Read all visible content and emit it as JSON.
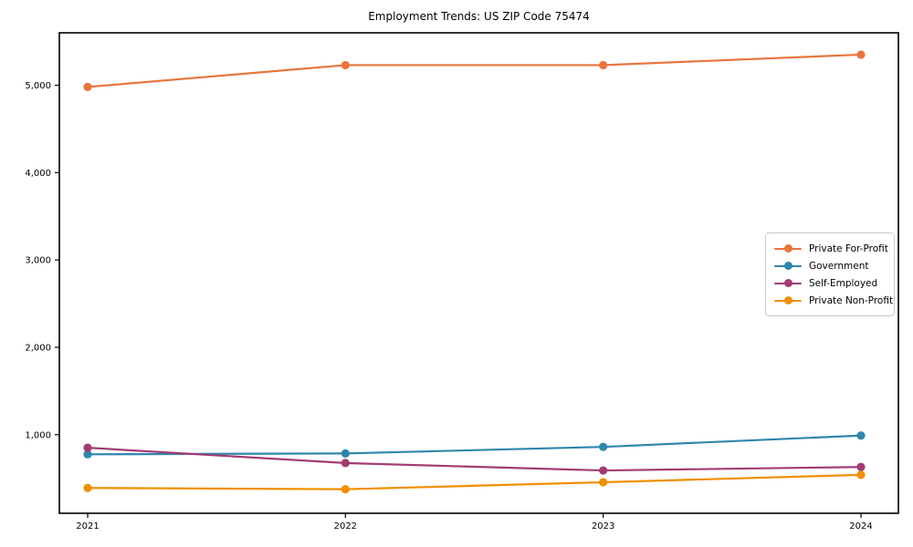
{
  "page": {
    "title": "Employment Trends: US ZIP Code 75474"
  },
  "chart_data": {
    "type": "line",
    "title": "Employment Trends: US ZIP Code 75474",
    "xlabel": "",
    "ylabel": "",
    "categories": [
      "2021",
      "2022",
      "2023",
      "2024"
    ],
    "series": [
      {
        "name": "Private For-Profit",
        "color": "#e8743c",
        "values": [
          4980,
          5230,
          5230,
          5350
        ]
      },
      {
        "name": "Government",
        "color": "#2e86ab",
        "values": [
          775,
          785,
          860,
          990
        ]
      },
      {
        "name": "Self-Employed",
        "color": "#a23b72",
        "values": [
          850,
          675,
          590,
          630
        ]
      },
      {
        "name": "Private Non-Profit",
        "color": "#f18f01",
        "values": [
          390,
          375,
          455,
          540
        ]
      }
    ],
    "ylim": [
      100,
      5600
    ],
    "yticks": [
      1000,
      2000,
      3000,
      4000,
      5000
    ],
    "ytick_labels": [
      "1,000",
      "2,000",
      "3,000",
      "4,000",
      "5,000"
    ],
    "grid": false,
    "legend_position": "right-middle",
    "marker": "circle",
    "axis_color": "#000000",
    "background_color": "#ffffff"
  }
}
